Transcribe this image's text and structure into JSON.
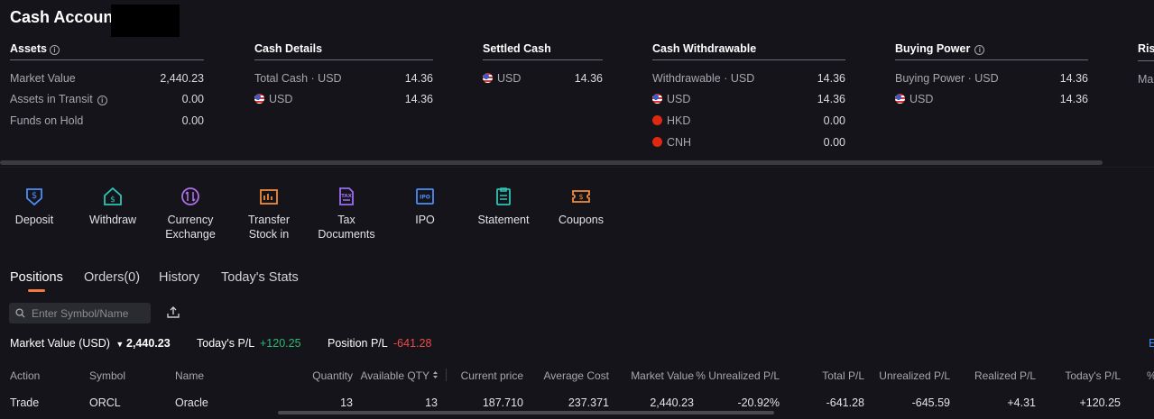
{
  "header": {
    "title": "Cash Account"
  },
  "assets": {
    "heading": "Assets",
    "rows": [
      {
        "label": "Market Value",
        "value": "2,440.23"
      },
      {
        "label": "Assets in Transit",
        "value": "0.00"
      },
      {
        "label": "Funds on Hold",
        "value": "0.00"
      }
    ]
  },
  "cash_details": {
    "heading": "Cash Details",
    "rows": [
      {
        "label": "Total Cash · USD",
        "value": "14.36"
      },
      {
        "label": "USD",
        "value": "14.36"
      }
    ]
  },
  "settled_cash": {
    "heading": "Settled Cash",
    "rows": [
      {
        "label": "USD",
        "value": "14.36"
      }
    ]
  },
  "cash_withdrawable": {
    "heading": "Cash Withdrawable",
    "rows": [
      {
        "label": "Withdrawable · USD",
        "value": "14.36"
      },
      {
        "label": "USD",
        "value": "14.36"
      },
      {
        "label": "HKD",
        "value": "0.00"
      },
      {
        "label": "CNH",
        "value": "0.00"
      }
    ]
  },
  "buying_power": {
    "heading": "Buying Power",
    "rows": [
      {
        "label": "Buying Power · USD",
        "value": "14.36"
      },
      {
        "label": "USD",
        "value": "14.36"
      }
    ]
  },
  "risk": {
    "heading": "Risk",
    "row_label": "Mar"
  },
  "actions": [
    {
      "label1": "Deposit",
      "label2": "",
      "icon": "deposit-icon",
      "color": "#4d8ef7"
    },
    {
      "label1": "Withdraw",
      "label2": "",
      "icon": "withdraw-icon",
      "color": "#2ec4b6"
    },
    {
      "label1": "Currency",
      "label2": "Exchange",
      "icon": "currency-exchange-icon",
      "color": "#b06ee8"
    },
    {
      "label1": "Transfer",
      "label2": "Stock in",
      "icon": "transfer-stock-icon",
      "color": "#f08a3c"
    },
    {
      "label1": "Tax",
      "label2": "Documents",
      "icon": "tax-documents-icon",
      "color": "#9b6ef0"
    },
    {
      "label1": "IPO",
      "label2": "",
      "icon": "ipo-icon",
      "color": "#4d8ef7"
    },
    {
      "label1": "Statement",
      "label2": "",
      "icon": "statement-icon",
      "color": "#2ec4b6"
    },
    {
      "label1": "Coupons",
      "label2": "",
      "icon": "coupons-icon",
      "color": "#f08a3c"
    }
  ],
  "tabs": [
    "Positions",
    "Orders(0)",
    "History",
    "Today's Stats"
  ],
  "search": {
    "placeholder": "Enter Symbol/Name"
  },
  "summary": {
    "market_value_label": "Market Value (USD)",
    "market_value": "2,440.23",
    "todays_pl_label": "Today's P/L",
    "todays_pl": "+120.25",
    "position_pl_label": "Position P/L",
    "position_pl": "-641.28",
    "right_edge": "E"
  },
  "table": {
    "headers": [
      "Action",
      "Symbol",
      "Name",
      "Quantity",
      "Available QTY",
      "Current price",
      "Average Cost",
      "Market Value",
      "% Unrealized P/L",
      "Total P/L",
      "Unrealized P/L",
      "Realized P/L",
      "Today's P/L",
      "%"
    ],
    "rows": [
      {
        "action": "Trade",
        "symbol": "ORCL",
        "name": "Oracle",
        "quantity": "13",
        "available_qty": "13",
        "current_price": "187.710",
        "average_cost": "237.371",
        "market_value": "2,440.23",
        "pct_unrealized": "-20.92%",
        "total_pl": "-641.28",
        "unrealized_pl": "-645.59",
        "realized_pl": "+4.31",
        "todays_pl": "+120.25"
      }
    ]
  },
  "colors": {
    "accent": "#f07b3c",
    "positive": "#2eb872",
    "negative": "#f04a4a",
    "link": "#3c8ef3"
  }
}
